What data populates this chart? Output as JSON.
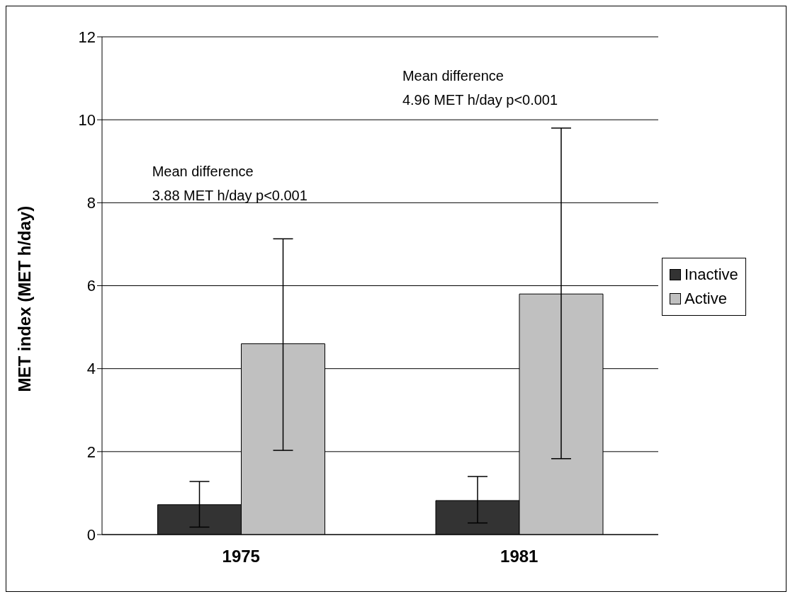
{
  "chart_data": {
    "type": "bar",
    "ylabel": "MET index (MET h/day)",
    "categories": [
      "1975",
      "1981"
    ],
    "series": [
      {
        "name": "Inactive",
        "color": "#333333",
        "values": [
          0.72,
          0.82
        ],
        "errors": [
          [
            0.18,
            1.28
          ],
          [
            0.28,
            1.4
          ]
        ]
      },
      {
        "name": "Active",
        "color": "#c0c0c0",
        "values": [
          4.6,
          5.8
        ],
        "errors": [
          [
            2.03,
            7.13
          ],
          [
            1.83,
            9.8
          ]
        ]
      }
    ],
    "ylim": [
      0,
      12
    ],
    "yticks": [
      0,
      2,
      4,
      6,
      8,
      10,
      12
    ],
    "grid": "y",
    "legend": "right",
    "annotations": [
      "Mean difference\n3.88 MET h/day p<0.001",
      "Mean difference\n4.96 MET h/day p<0.001"
    ]
  }
}
